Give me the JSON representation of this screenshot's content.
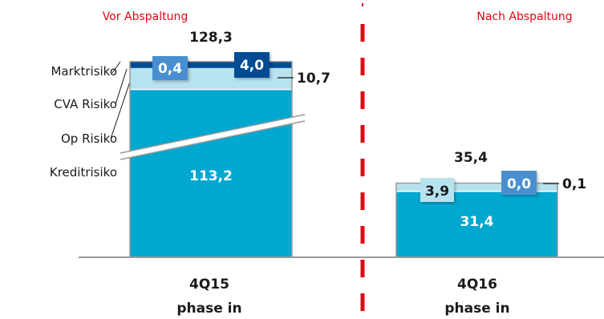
{
  "chart_data": {
    "type": "bar",
    "stacked": true,
    "categories": [
      [
        "4Q15",
        "phase in"
      ],
      [
        "4Q16",
        "phase in"
      ]
    ],
    "period_labels": [
      "Vor Abspaltung",
      "Nach Abspaltung"
    ],
    "legend": [
      "Marktrisiko",
      "CVA Risiko",
      "Op Risiko",
      "Kreditrisiko"
    ],
    "totals": [
      "128,3",
      "35,4"
    ],
    "series": [
      {
        "name": "Kreditrisiko",
        "values": [
          113.2,
          31.4
        ],
        "labels": [
          "113,2",
          "31,4"
        ],
        "color": "#00a7cf"
      },
      {
        "name": "Op Risiko",
        "values": [
          10.7,
          3.9
        ],
        "labels": [
          "10,7",
          "3,9"
        ],
        "color": "#b7e2ef"
      },
      {
        "name": "CVA Risiko",
        "values": [
          0.4,
          0.1
        ],
        "labels": [
          "0,4",
          "0,1"
        ],
        "color": "#4a8fd0"
      },
      {
        "name": "Marktrisiko",
        "values": [
          4.0,
          0.0
        ],
        "labels": [
          "4,0",
          "0,0"
        ],
        "color": "#004b93"
      }
    ],
    "colors": {
      "divider": "#e30613",
      "period_text": "#e30613",
      "axis": "#9a9a9a"
    }
  }
}
